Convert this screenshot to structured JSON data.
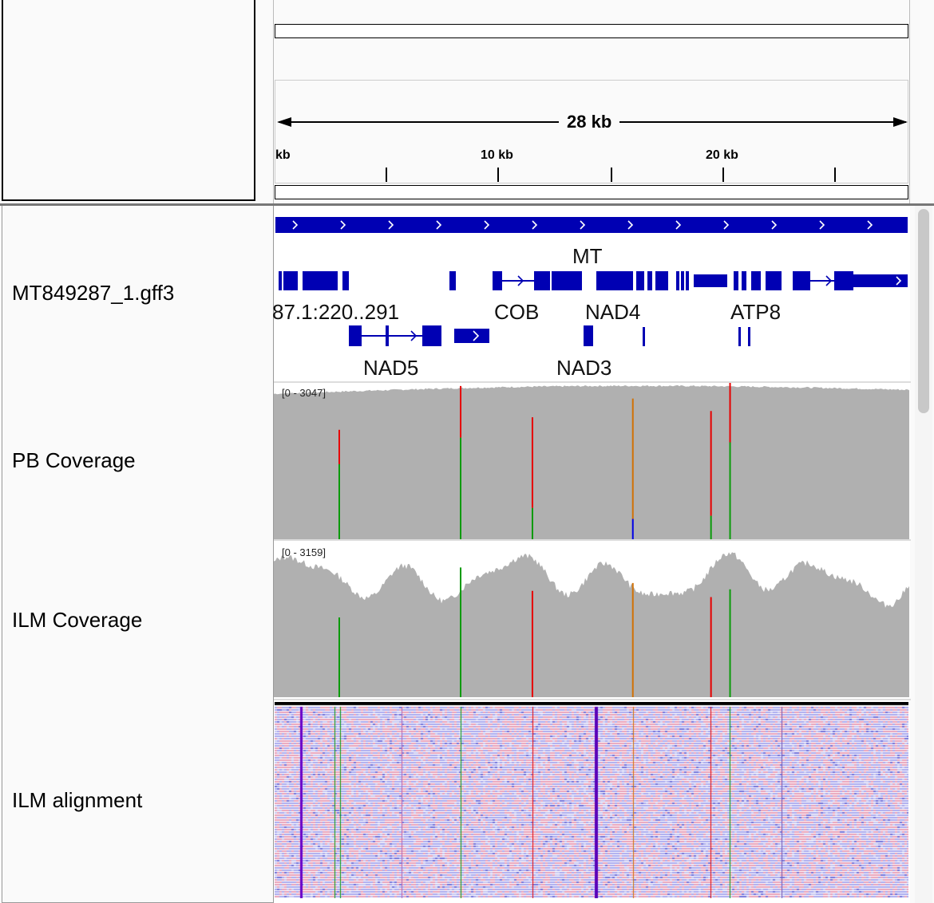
{
  "ruler": {
    "span_label": "28 kb",
    "tick_labels": [
      "kb",
      "10 kb",
      "20 kb"
    ]
  },
  "tracks": [
    {
      "name": "MT849287_1.gff3"
    },
    {
      "name": "PB Coverage",
      "range": "[0 - 3047]"
    },
    {
      "name": "ILM Coverage",
      "range": "[0 - 3159]"
    },
    {
      "name": "ILM alignment"
    }
  ],
  "genes": {
    "feature_label": "MT",
    "row1_labels": [
      "87.1:220..291",
      "COB",
      "NAD4",
      "ATP8"
    ],
    "row2_labels": [
      "NAD5",
      "NAD3"
    ]
  },
  "colors": {
    "feature_blue": "#0000b3",
    "coverage_gray": "#b0b0b0",
    "allele_A": "#0a9a0a",
    "allele_T": "#e60000",
    "allele_G": "#d17105",
    "allele_C": "#0000e6"
  },
  "variant_sites": [
    {
      "pos": 0.103,
      "pb_top": 0.3,
      "pb_split": 0.52,
      "pb_colors": [
        "red",
        "green"
      ],
      "ilm_top": 0.49,
      "ilm_colors": [
        "green"
      ]
    },
    {
      "pos": 0.294,
      "pb_top": 0.02,
      "pb_split": 0.35,
      "pb_colors": [
        "red",
        "green"
      ],
      "ilm_top": 0.17,
      "ilm_colors": [
        "green"
      ]
    },
    {
      "pos": 0.407,
      "pb_top": 0.22,
      "pb_split": 0.8,
      "pb_colors": [
        "red",
        "green"
      ],
      "ilm_top": 0.32,
      "ilm_colors": [
        "red"
      ]
    },
    {
      "pos": 0.565,
      "pb_top": 0.1,
      "pb_split": 0.87,
      "pb_colors": [
        "orange",
        "blue"
      ],
      "ilm_top": 0.27,
      "ilm_colors": [
        "orange"
      ]
    },
    {
      "pos": 0.688,
      "pb_top": 0.18,
      "pb_split": 0.85,
      "pb_colors": [
        "red",
        "green"
      ],
      "ilm_top": 0.36,
      "ilm_colors": [
        "red"
      ]
    },
    {
      "pos": 0.718,
      "pb_top": 0.0,
      "pb_split": 0.38,
      "pb_colors": [
        "red",
        "green"
      ],
      "ilm_top": 0.31,
      "ilm_colors": [
        "green"
      ]
    }
  ]
}
